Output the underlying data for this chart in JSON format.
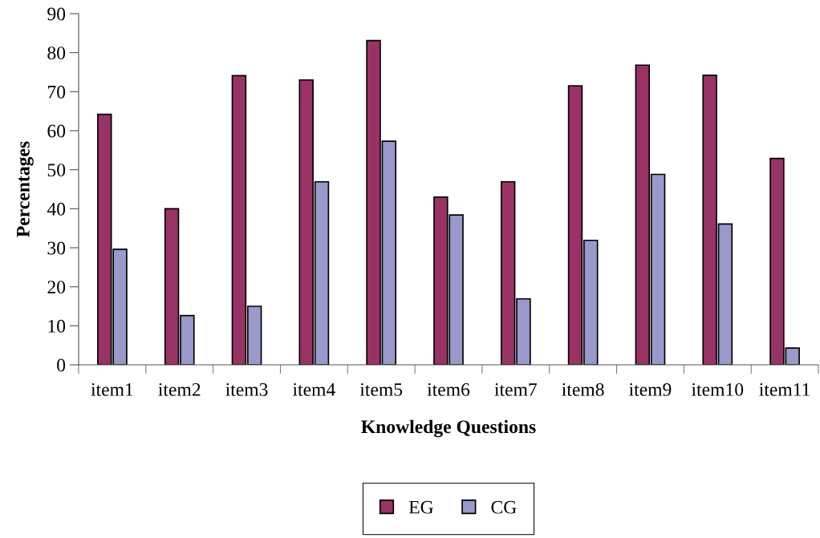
{
  "chart_data": {
    "type": "bar",
    "xlabel": "Knowledge Questions",
    "ylabel": "Percentages",
    "categories": [
      "item1",
      "item2",
      "item3",
      "item4",
      "item5",
      "item6",
      "item7",
      "item8",
      "item9",
      "item10",
      "item11"
    ],
    "series": [
      {
        "name": "EG",
        "color": "#993366",
        "values": [
          64.2,
          40.0,
          74.1,
          73.0,
          83.1,
          43.0,
          46.9,
          71.5,
          76.8,
          74.2,
          52.9
        ]
      },
      {
        "name": "CG",
        "color": "#9999cc",
        "values": [
          29.6,
          12.6,
          15.0,
          46.9,
          57.3,
          38.4,
          16.9,
          31.9,
          48.8,
          36.1,
          4.3
        ]
      }
    ],
    "ylim": [
      0,
      90
    ],
    "yticks": [
      0,
      10,
      20,
      30,
      40,
      50,
      60,
      70,
      80,
      90
    ],
    "grid": false,
    "legend": "bottom"
  }
}
